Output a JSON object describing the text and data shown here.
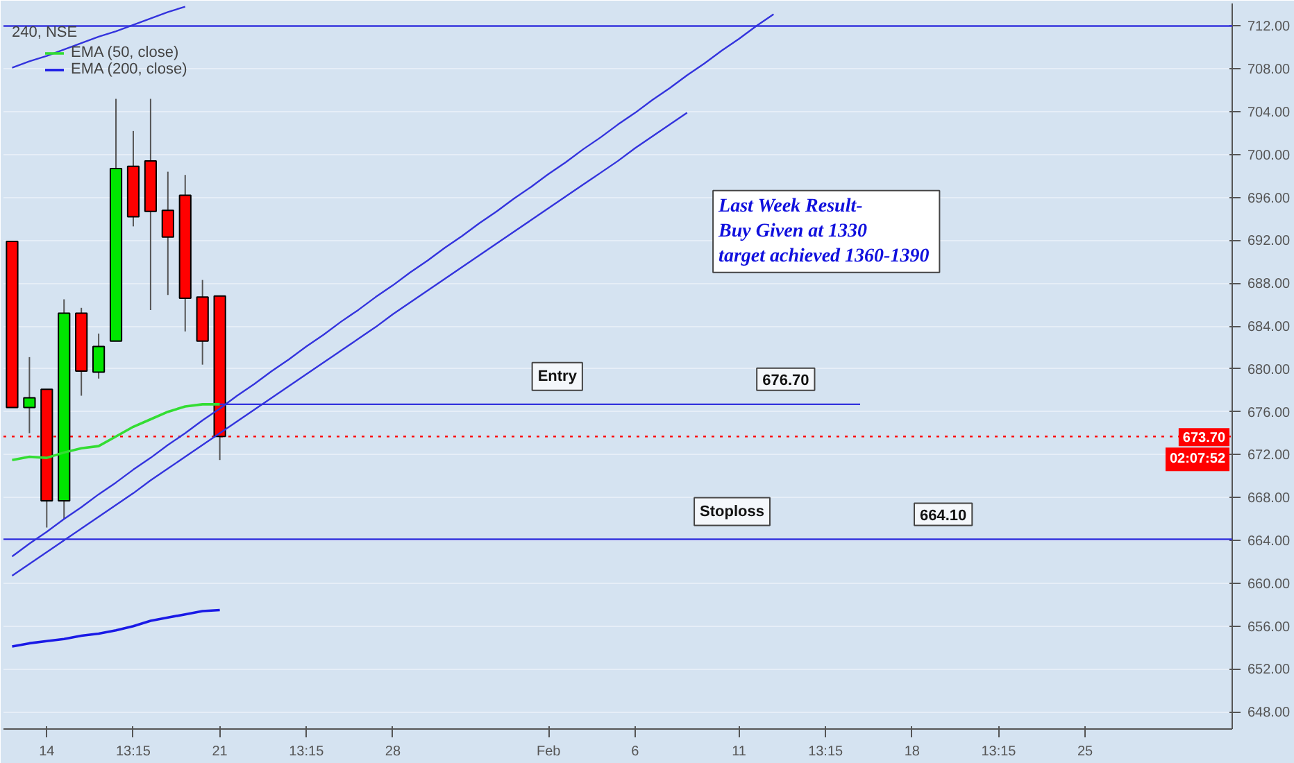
{
  "chart_data": {
    "type": "candlestick",
    "title": "240, NSE",
    "categories": [
      null,
      null,
      "14",
      null,
      null,
      null,
      null,
      "13:15",
      null,
      null,
      null,
      null,
      "21",
      null,
      null,
      null,
      null,
      "13:15",
      null,
      null,
      null,
      null,
      "28",
      null,
      null,
      null,
      null,
      null,
      null,
      null,
      null,
      "Feb",
      null,
      null,
      null,
      null,
      "6",
      null,
      null,
      null,
      null,
      null,
      "11",
      null,
      null,
      null,
      null,
      "13:15",
      null,
      null,
      null,
      null,
      "18",
      null,
      null,
      null,
      null,
      "13:15",
      null,
      null,
      null,
      null,
      "25",
      null,
      null,
      null,
      null,
      null,
      null,
      null,
      null
    ],
    "ohlc": [
      [
        691.9,
        691.9,
        676.4,
        676.4
      ],
      [
        676.4,
        681.1,
        674.0,
        677.3
      ],
      [
        678.1,
        678.1,
        665.2,
        667.7
      ],
      [
        667.7,
        686.5,
        666.0,
        685.2
      ],
      [
        685.2,
        685.7,
        677.5,
        679.8
      ],
      [
        679.7,
        683.3,
        679.1,
        682.1
      ],
      [
        682.6,
        705.2,
        682.6,
        698.7
      ],
      [
        698.9,
        702.2,
        693.3,
        694.2
      ],
      [
        699.4,
        705.2,
        685.5,
        694.7
      ],
      [
        694.8,
        698.4,
        686.9,
        692.3
      ],
      [
        696.2,
        698.1,
        683.5,
        686.6
      ],
      [
        686.7,
        688.3,
        680.4,
        682.6
      ],
      [
        686.8,
        686.8,
        671.5,
        673.7
      ],
      null,
      null,
      null,
      null,
      null,
      null,
      null,
      null,
      null,
      null,
      null,
      null,
      null,
      null,
      null,
      null,
      null,
      null,
      null,
      null,
      null,
      null,
      null,
      null,
      null,
      null,
      null,
      null,
      null,
      null,
      null,
      null,
      null,
      null,
      null,
      null,
      null,
      null,
      null,
      null,
      null,
      null,
      null,
      null,
      null,
      null,
      null,
      null,
      null,
      null,
      null,
      null,
      null,
      null,
      null,
      null,
      null,
      null
    ],
    "colors": [
      "#ff0000",
      "#00e600",
      "#ff0000",
      "#00e600",
      "#ff0000",
      "#00e600",
      "#00e600",
      "#ff0000",
      "#ff0000",
      "#ff0000",
      "#ff0000",
      "#ff0000",
      "#ff0000",
      null,
      null,
      null,
      null,
      null,
      null,
      null,
      null,
      null,
      null,
      null,
      null,
      null,
      null,
      null,
      null,
      null,
      null,
      null,
      null,
      null,
      null,
      null,
      null,
      null,
      null,
      null,
      null,
      null,
      null,
      null,
      null,
      null,
      null,
      null,
      null,
      null,
      null,
      null,
      null,
      null,
      null,
      null,
      null,
      null,
      null,
      null,
      null,
      null,
      null,
      null,
      null,
      null,
      null,
      null,
      null,
      null,
      null
    ],
    "series": [
      {
        "name": "EMA (50, close)",
        "type": "line",
        "color": "#33dd33",
        "values": [
          671.5,
          671.8,
          671.7,
          672.2,
          672.6,
          672.8,
          673.7,
          674.6,
          675.3,
          676.0,
          676.5,
          676.7,
          676.7,
          null,
          null,
          null,
          null,
          null,
          null,
          null,
          null,
          null,
          null,
          null,
          null,
          null,
          null,
          null,
          null,
          null,
          null,
          null,
          null,
          null,
          null,
          null,
          null,
          null,
          null,
          null,
          null,
          null,
          null,
          null,
          null,
          null,
          null,
          null,
          null,
          null,
          null,
          null,
          null,
          null,
          null,
          null,
          null,
          null,
          null,
          null,
          null,
          null,
          null,
          null,
          null,
          null,
          null,
          null,
          null,
          null,
          null
        ]
      },
      {
        "name": "EMA (200, close)",
        "type": "line",
        "color": "#1a1ae6",
        "values": [
          654.1,
          654.4,
          654.6,
          654.8,
          655.1,
          655.3,
          655.6,
          656.0,
          656.5,
          656.8,
          657.1,
          657.4,
          657.5,
          null,
          null,
          null,
          null,
          null,
          null,
          null,
          null,
          null,
          null,
          null,
          null,
          null,
          null,
          null,
          null,
          null,
          null,
          null,
          null,
          null,
          null,
          null,
          null,
          null,
          null,
          null,
          null,
          null,
          null,
          null,
          null,
          null,
          null,
          null,
          null,
          null,
          null,
          null,
          null,
          null,
          null,
          null,
          null,
          null,
          null,
          null,
          null,
          null,
          null,
          null,
          null,
          null,
          null,
          null,
          null,
          null,
          null
        ]
      },
      {
        "type": "line",
        "color": "#3333dd",
        "values": [
          null,
          null,
          null,
          null,
          null,
          null,
          null,
          null,
          null,
          null,
          null,
          null,
          676.7,
          676.7,
          676.7,
          676.7,
          676.7,
          676.7,
          676.7,
          676.7,
          676.7,
          676.7,
          676.7,
          676.7,
          676.7,
          676.7,
          676.7,
          676.7,
          676.7,
          676.7,
          676.7,
          676.7,
          676.7,
          676.7,
          676.7,
          676.7,
          676.7,
          676.7,
          676.7,
          676.7,
          676.7,
          676.7,
          676.7,
          676.7,
          676.7,
          676.7,
          676.7,
          676.7,
          676.7,
          676.7,
          null,
          null,
          null,
          null,
          null,
          null,
          null,
          null,
          null,
          null,
          null,
          null,
          null,
          null,
          null,
          null,
          null,
          null,
          null,
          null,
          null
        ]
      },
      {
        "type": "line",
        "color": "#3333dd",
        "values": [
          662.5,
          663.7,
          664.8,
          666.0,
          667.1,
          668.3,
          669.4,
          670.6,
          671.7,
          672.9,
          674.0,
          675.2,
          676.3,
          677.5,
          678.6,
          679.8,
          680.9,
          682.1,
          683.2,
          684.4,
          685.5,
          686.7,
          687.8,
          689.0,
          690.1,
          691.3,
          692.4,
          693.6,
          694.7,
          695.9,
          697.0,
          698.2,
          699.3,
          700.5,
          701.6,
          702.8,
          703.9,
          705.1,
          706.2,
          707.4,
          708.5,
          709.7,
          710.8,
          712.0,
          713.1,
          null,
          null,
          null,
          null,
          null,
          null,
          null,
          null,
          null,
          null,
          null,
          null,
          null,
          null,
          null,
          null,
          null,
          null,
          null,
          null,
          null,
          null,
          null,
          null,
          null,
          null
        ]
      },
      {
        "type": "line",
        "color": "#3333dd",
        "values": [
          660.7,
          661.8,
          662.9,
          664.0,
          665.1,
          666.2,
          667.3,
          668.4,
          669.6,
          670.7,
          671.8,
          672.9,
          674.0,
          675.1,
          676.2,
          677.3,
          678.4,
          679.5,
          680.6,
          681.7,
          682.8,
          683.9,
          685.1,
          686.2,
          687.3,
          688.4,
          689.5,
          690.6,
          691.7,
          692.8,
          693.9,
          695.0,
          696.1,
          697.2,
          698.3,
          699.4,
          700.6,
          701.7,
          702.8,
          703.9,
          null,
          null,
          null,
          null,
          null,
          null,
          null,
          null,
          null,
          null,
          null,
          null,
          null,
          null,
          null,
          null,
          null,
          null,
          null,
          null,
          null,
          null,
          null,
          null,
          null,
          null,
          null,
          null,
          null,
          null,
          null
        ]
      },
      {
        "type": "line",
        "color": "#3333dd",
        "values": [
          708.1,
          708.7,
          709.2,
          709.8,
          710.4,
          711.0,
          711.5,
          712.1,
          712.7,
          713.3,
          713.8,
          null,
          null,
          null,
          null,
          null,
          null,
          null,
          null,
          null,
          null,
          null,
          null,
          null,
          null,
          null,
          null,
          null,
          null,
          null,
          null,
          null,
          null,
          null,
          null,
          null,
          null,
          null,
          null,
          null,
          null,
          null,
          null,
          null,
          null,
          null,
          null,
          null,
          null,
          null,
          null,
          null,
          null,
          null,
          null,
          null,
          null,
          null,
          null,
          null,
          null,
          null,
          null,
          null,
          null,
          null,
          null,
          null,
          null,
          null,
          null
        ]
      }
    ],
    "ref_lines": [
      {
        "axis": "y",
        "value": 712,
        "color": "#3333dd",
        "line_style": "solid"
      },
      {
        "axis": "y",
        "value": 664.1,
        "color": "#3333dd",
        "line_style": "solid"
      },
      {
        "axis": "y",
        "value": 673.7,
        "label": "673.70",
        "color": "#ff0000",
        "line_style": "dotted"
      }
    ],
    "annotations": [
      "Last Week Result-\nBuy Given at 1330\n target achieved 1360-1390",
      "02:07:52",
      {
        "text": "Entry",
        "y": 676.7
      },
      {
        "text": "676.70",
        "y": 676.7
      },
      {
        "text": "Stoploss",
        "y": 664.1
      },
      {
        "text": "664.10",
        "y": 664.1
      }
    ],
    "ylim": [
      646.4,
      714.1
    ],
    "yticks": [
      {
        "value": 648,
        "label": "648.00"
      },
      {
        "value": 652,
        "label": "652.00"
      },
      {
        "value": 656,
        "label": "656.00"
      },
      {
        "value": 660,
        "label": "660.00"
      },
      {
        "value": 664,
        "label": "664.00"
      },
      {
        "value": 668,
        "label": "668.00"
      },
      {
        "value": 672,
        "label": "672.00"
      },
      {
        "value": 676,
        "label": "676.00"
      },
      {
        "value": 680,
        "label": "680.00"
      },
      {
        "value": 684,
        "label": "684.00"
      },
      {
        "value": 688,
        "label": "688.00"
      },
      {
        "value": 692,
        "label": "692.00"
      },
      {
        "value": 696,
        "label": "696.00"
      },
      {
        "value": 700,
        "label": "700.00"
      },
      {
        "value": 704,
        "label": "704.00"
      },
      {
        "value": 708,
        "label": "708.00"
      },
      {
        "value": 712,
        "label": "712.00"
      }
    ],
    "grid": "y",
    "legend": "top left"
  }
}
